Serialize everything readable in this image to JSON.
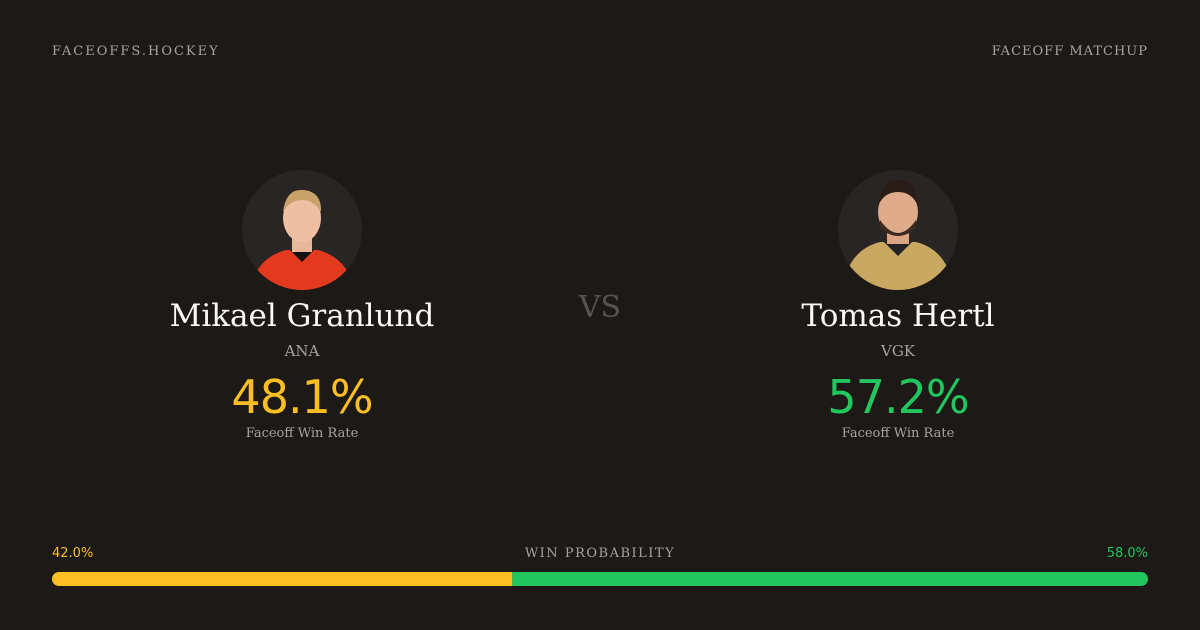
{
  "header": {
    "brand": "FACEOFFS.HOCKEY",
    "label": "FACEOFF MATCHUP"
  },
  "players": [
    {
      "name": "Mikael Granlund",
      "team": "ANA",
      "rate": "48.1%",
      "rate_label": "Faceoff Win Rate",
      "color": "#fbbf24"
    },
    {
      "name": "Tomas Hertl",
      "team": "VGK",
      "rate": "57.2%",
      "rate_label": "Faceoff Win Rate",
      "color": "#22c55e"
    }
  ],
  "versus": "VS",
  "probability": {
    "title": "WIN PROBABILITY",
    "segments": [
      {
        "value": 42.0,
        "label": "42.0%",
        "color": "#fbbf24"
      },
      {
        "value": 58.0,
        "label": "58.0%",
        "color": "#22c55e"
      }
    ]
  }
}
